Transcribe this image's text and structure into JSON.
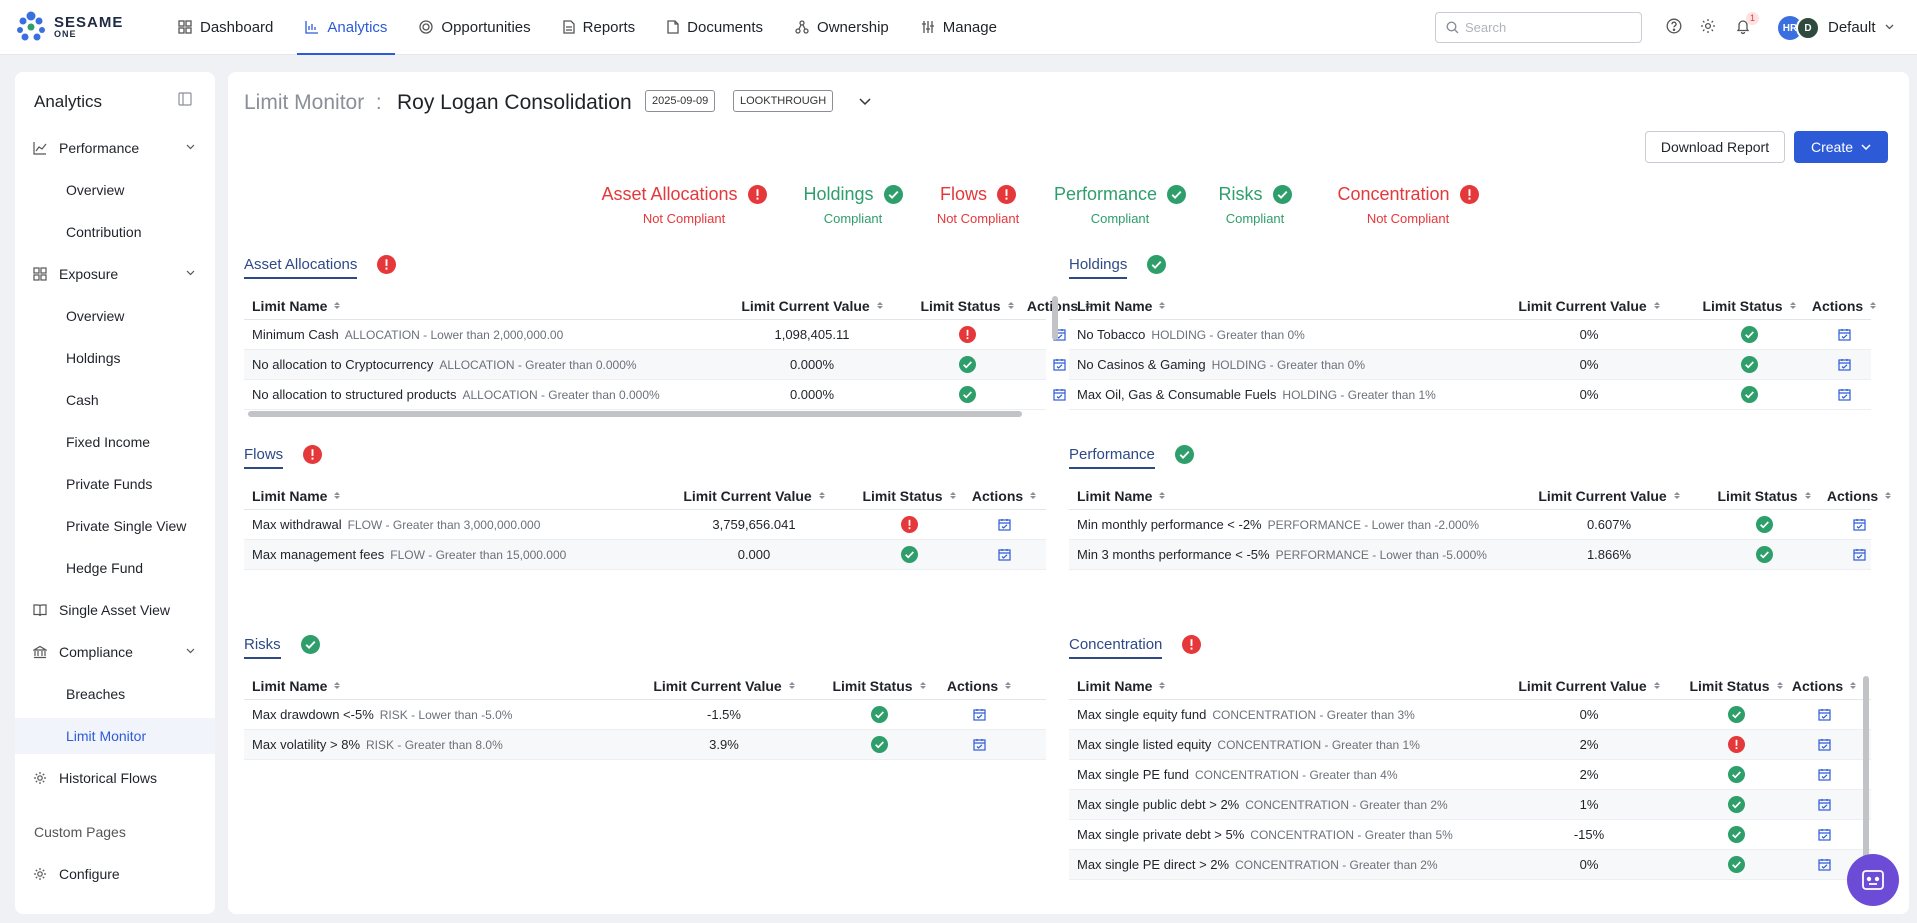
{
  "brand": {
    "name": "SESAME",
    "sub": "ONE"
  },
  "nav": [
    {
      "label": "Dashboard",
      "icon": "dashboard-icon",
      "active": false
    },
    {
      "label": "Analytics",
      "icon": "chart-icon",
      "active": true
    },
    {
      "label": "Opportunities",
      "icon": "target-icon",
      "active": false
    },
    {
      "label": "Reports",
      "icon": "report-icon",
      "active": false
    },
    {
      "label": "Documents",
      "icon": "document-icon",
      "active": false
    },
    {
      "label": "Ownership",
      "icon": "ownership-icon",
      "active": false
    },
    {
      "label": "Manage",
      "icon": "sliders-icon",
      "active": false
    }
  ],
  "search": {
    "placeholder": "Search"
  },
  "notifications": {
    "count": "1"
  },
  "user": {
    "initials_1": "HR",
    "initials_2": "D",
    "name": "Default"
  },
  "sidebar": {
    "title": "Analytics",
    "performance": "Performance",
    "performance_overview": "Overview",
    "contribution": "Contribution",
    "exposure": "Exposure",
    "exposure_overview": "Overview",
    "holdings": "Holdings",
    "cash": "Cash",
    "fixed_income": "Fixed Income",
    "private_funds": "Private Funds",
    "private_single_view": "Private Single View",
    "hedge_fund": "Hedge Fund",
    "single_asset_view": "Single Asset View",
    "compliance": "Compliance",
    "breaches": "Breaches",
    "limit_monitor": "Limit Monitor",
    "historical_flows": "Historical Flows",
    "custom_pages": "Custom Pages",
    "configure": "Configure"
  },
  "header": {
    "prefix": "Limit Monitor",
    "separator": ":",
    "portfolio": "Roy Logan Consolidation",
    "date": "2025-09-09",
    "mode": "LOOKTHROUGH",
    "download_label": "Download Report",
    "create_label": "Create"
  },
  "summary": [
    {
      "title": "Asset Allocations",
      "status": "Not Compliant",
      "ok": false
    },
    {
      "title": "Holdings",
      "status": "Compliant",
      "ok": true
    },
    {
      "title": "Flows",
      "status": "Not Compliant",
      "ok": false
    },
    {
      "title": "Performance",
      "status": "Compliant",
      "ok": true
    },
    {
      "title": "Risks",
      "status": "Compliant",
      "ok": true
    },
    {
      "title": "Concentration",
      "status": "Not Compliant",
      "ok": false
    }
  ],
  "columns": {
    "name": "Limit Name",
    "value": "Limit Current Value",
    "status": "Limit Status",
    "actions": "Actions"
  },
  "panels": {
    "asset_allocations": {
      "title": "Asset Allocations",
      "ok": false,
      "rows": [
        {
          "name": "Minimum Cash",
          "desc": "ALLOCATION - Lower than 2,000,000.00",
          "value": "1,098,405.11",
          "ok": false
        },
        {
          "name": "No allocation to Cryptocurrency",
          "desc": "ALLOCATION - Greater than 0.000%",
          "value": "0.000%",
          "ok": true
        },
        {
          "name": "No allocation to structured products",
          "desc": "ALLOCATION - Greater than 0.000%",
          "value": "0.000%",
          "ok": true
        }
      ]
    },
    "holdings": {
      "title": "Holdings",
      "ok": true,
      "rows": [
        {
          "name": "No Tobacco",
          "desc": "HOLDING - Greater than 0%",
          "value": "0%",
          "ok": true
        },
        {
          "name": "No Casinos & Gaming",
          "desc": "HOLDING - Greater than 0%",
          "value": "0%",
          "ok": true
        },
        {
          "name": "Max Oil, Gas & Consumable Fuels",
          "desc": "HOLDING - Greater than 1%",
          "value": "0%",
          "ok": true
        }
      ]
    },
    "flows": {
      "title": "Flows",
      "ok": false,
      "rows": [
        {
          "name": "Max withdrawal",
          "desc": "FLOW - Greater than 3,000,000.000",
          "value": "3,759,656.041",
          "ok": false
        },
        {
          "name": "Max management fees",
          "desc": "FLOW - Greater than 15,000.000",
          "value": "0.000",
          "ok": true
        }
      ]
    },
    "performance": {
      "title": "Performance",
      "ok": true,
      "rows": [
        {
          "name": "Min monthly performance < -2%",
          "desc": "PERFORMANCE - Lower than -2.000%",
          "value": "0.607%",
          "ok": true
        },
        {
          "name": "Min 3 months performance < -5%",
          "desc": "PERFORMANCE - Lower than -5.000%",
          "value": "1.866%",
          "ok": true
        }
      ]
    },
    "risks": {
      "title": "Risks",
      "ok": true,
      "rows": [
        {
          "name": "Max drawdown <-5%",
          "desc": "RISK - Lower than -5.0%",
          "value": "-1.5%",
          "ok": true
        },
        {
          "name": "Max volatility > 8%",
          "desc": "RISK - Greater than 8.0%",
          "value": "3.9%",
          "ok": true
        }
      ]
    },
    "concentration": {
      "title": "Concentration",
      "ok": false,
      "rows": [
        {
          "name": "Max single equity fund",
          "desc": "CONCENTRATION - Greater than 3%",
          "value": "0%",
          "ok": true
        },
        {
          "name": "Max single listed equity",
          "desc": "CONCENTRATION - Greater than 1%",
          "value": "2%",
          "ok": false
        },
        {
          "name": "Max single PE fund",
          "desc": "CONCENTRATION - Greater than 4%",
          "value": "2%",
          "ok": true
        },
        {
          "name": "Max single public debt > 2%",
          "desc": "CONCENTRATION - Greater than 2%",
          "value": "1%",
          "ok": true
        },
        {
          "name": "Max single private debt > 5%",
          "desc": "CONCENTRATION - Greater than 5%",
          "value": "-15%",
          "ok": true
        },
        {
          "name": "Max single PE direct > 2%",
          "desc": "CONCENTRATION - Greater than 2%",
          "value": "0%",
          "ok": true
        }
      ]
    }
  },
  "colors": {
    "accent": "#2d5bd8",
    "ok": "#2e9e6b",
    "fail": "#e5383b",
    "bot": "#6c4bd6"
  }
}
